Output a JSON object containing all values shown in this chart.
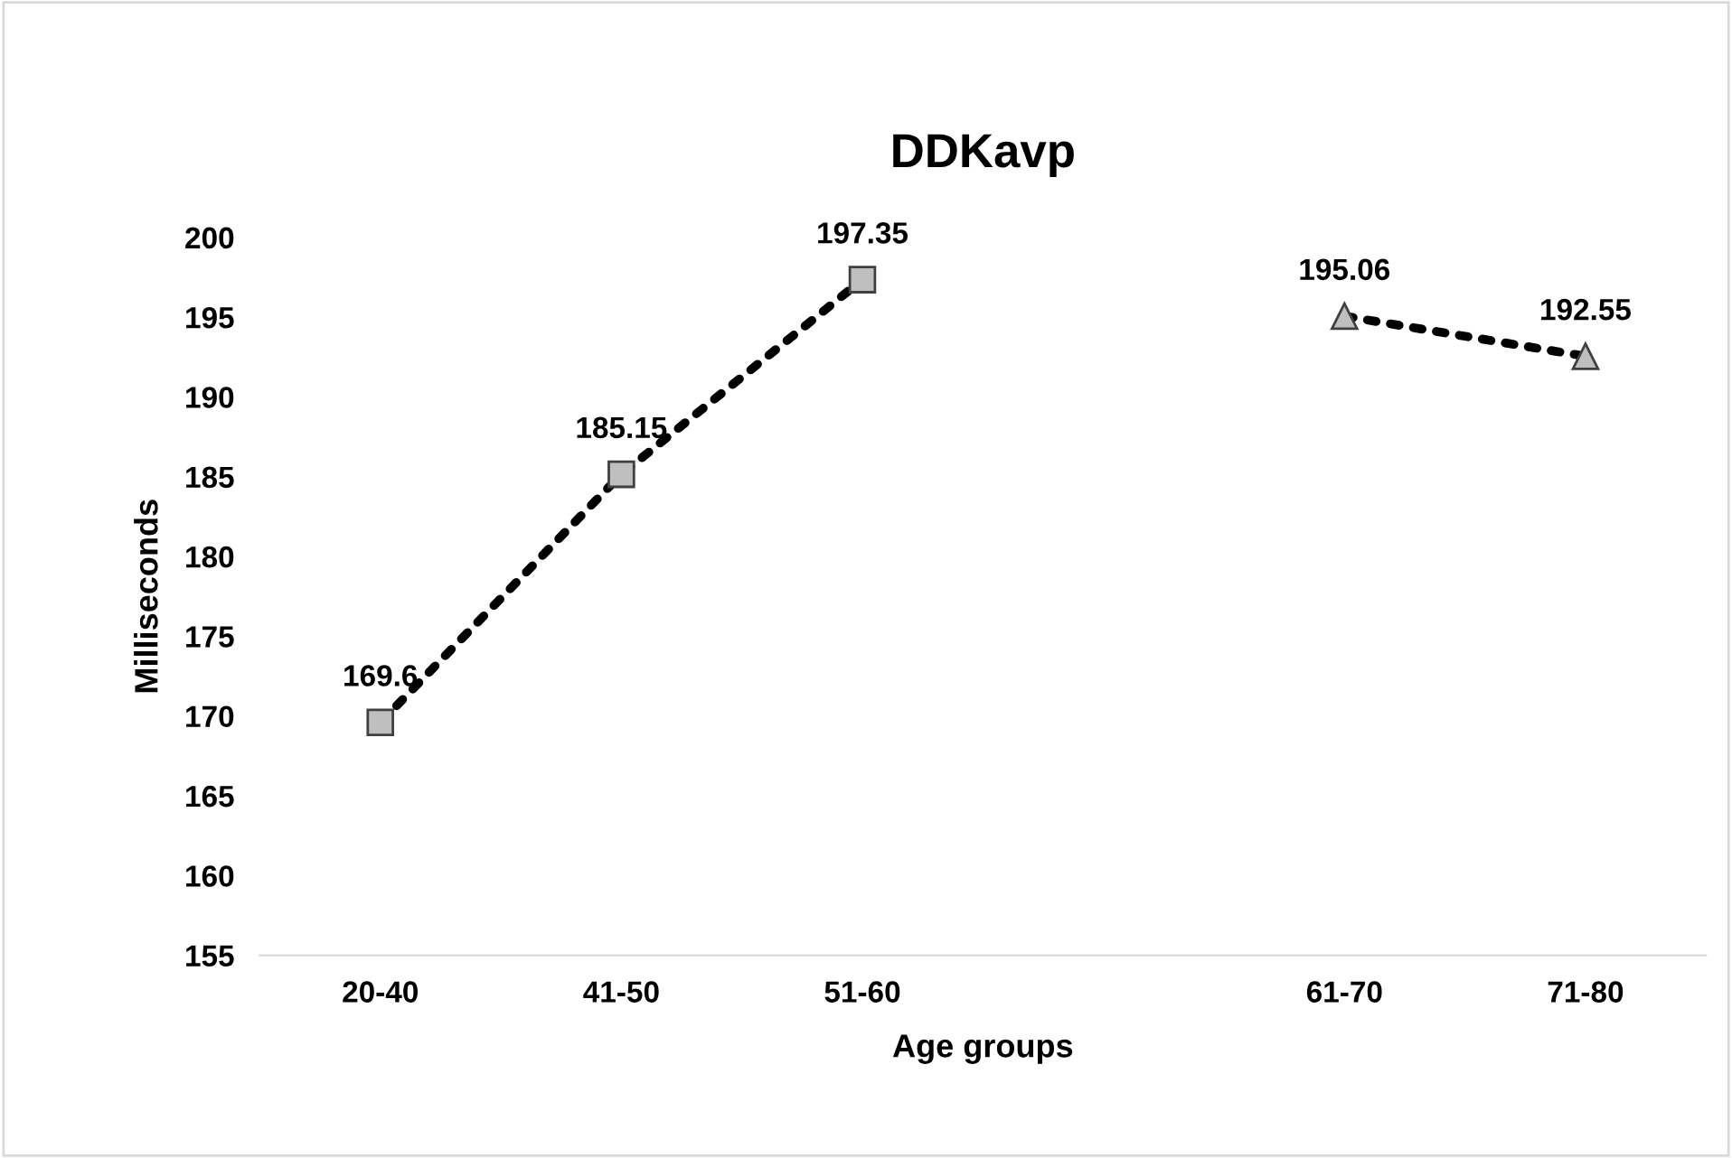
{
  "chart_data": {
    "type": "line",
    "title": "DDKavp",
    "xlabel": "Age groups",
    "ylabel": "Milliseconds",
    "categories": [
      "20-40",
      "41-50",
      "51-60",
      null,
      "61-70",
      "71-80"
    ],
    "series": [
      {
        "color": "#000000",
        "marker": "square",
        "values": [
          169.6,
          185.15,
          197.35,
          null,
          null,
          null
        ]
      },
      {
        "color": "#000000",
        "marker": "triangle",
        "values": [
          null,
          null,
          null,
          null,
          195.06,
          192.55
        ]
      }
    ],
    "ylim": [
      155,
      200
    ],
    "yticks": [
      155,
      160,
      165,
      170,
      175,
      180,
      185,
      190,
      195,
      200
    ],
    "grid": false,
    "legend": false,
    "line_style": "dotted",
    "data_labels": true
  }
}
